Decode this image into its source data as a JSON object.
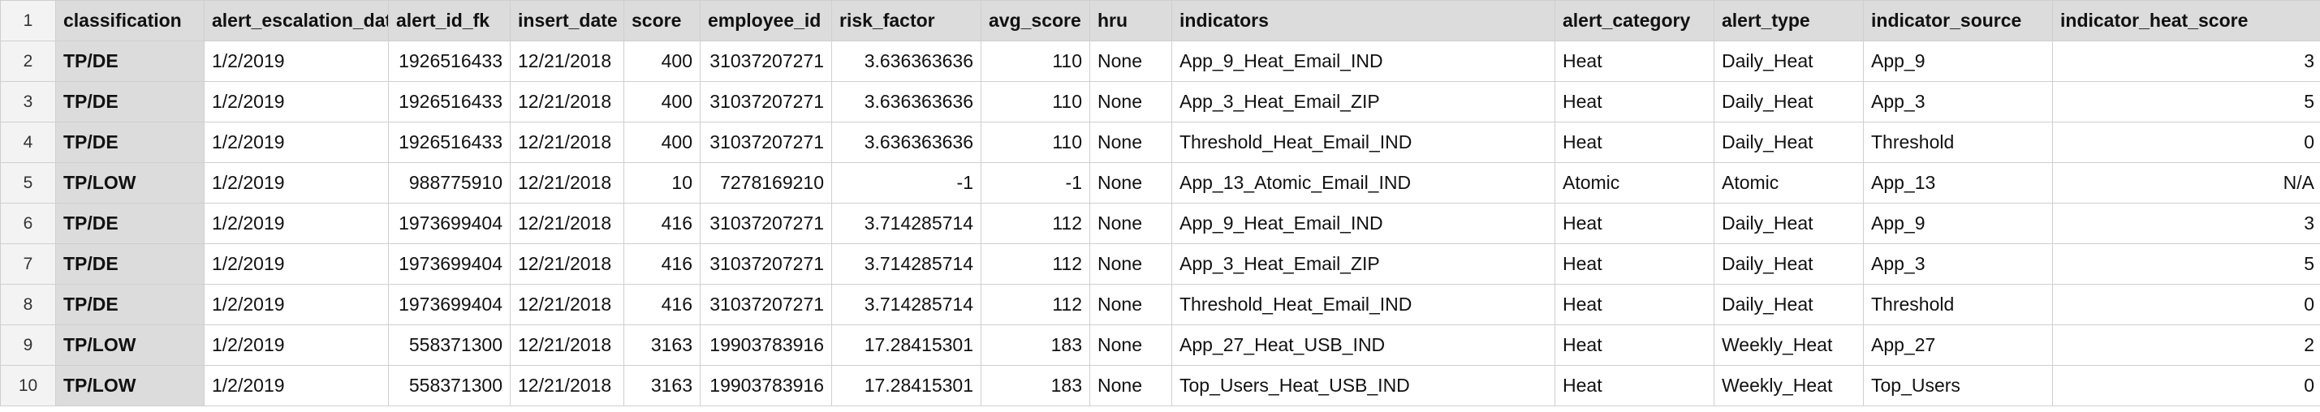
{
  "columns": [
    {
      "key": "classification",
      "label": "classification",
      "align": "left"
    },
    {
      "key": "alert_escalation_date",
      "label": "alert_escalation_date",
      "align": "left"
    },
    {
      "key": "alert_id_fk",
      "label": "alert_id_fk",
      "align": "right"
    },
    {
      "key": "insert_date",
      "label": "insert_date",
      "align": "left"
    },
    {
      "key": "score",
      "label": "score",
      "align": "right"
    },
    {
      "key": "employee_id",
      "label": "employee_id",
      "align": "right"
    },
    {
      "key": "risk_factor",
      "label": "risk_factor",
      "align": "right"
    },
    {
      "key": "avg_score",
      "label": "avg_score",
      "align": "right"
    },
    {
      "key": "hru",
      "label": "hru",
      "align": "left"
    },
    {
      "key": "indicators",
      "label": "indicators",
      "align": "left"
    },
    {
      "key": "alert_category",
      "label": "alert_category",
      "align": "left"
    },
    {
      "key": "alert_type",
      "label": "alert_type",
      "align": "left"
    },
    {
      "key": "indicator_source",
      "label": "indicator_source",
      "align": "left"
    },
    {
      "key": "indicator_heat_score",
      "label": "indicator_heat_score",
      "align": "right"
    }
  ],
  "header_row_number": "1",
  "rows": [
    {
      "row_number": "2",
      "cells": [
        "TP/DE",
        "1/2/2019",
        "1926516433",
        "12/21/2018",
        "400",
        "31037207271",
        "3.636363636",
        "110",
        "None",
        "App_9_Heat_Email_IND",
        "Heat",
        "Daily_Heat",
        "App_9",
        "3"
      ]
    },
    {
      "row_number": "3",
      "cells": [
        "TP/DE",
        "1/2/2019",
        "1926516433",
        "12/21/2018",
        "400",
        "31037207271",
        "3.636363636",
        "110",
        "None",
        "App_3_Heat_Email_ZIP",
        "Heat",
        "Daily_Heat",
        "App_3",
        "5"
      ]
    },
    {
      "row_number": "4",
      "cells": [
        "TP/DE",
        "1/2/2019",
        "1926516433",
        "12/21/2018",
        "400",
        "31037207271",
        "3.636363636",
        "110",
        "None",
        "Threshold_Heat_Email_IND",
        "Heat",
        "Daily_Heat",
        "Threshold",
        "0"
      ]
    },
    {
      "row_number": "5",
      "cells": [
        "TP/LOW",
        "1/2/2019",
        "988775910",
        "12/21/2018",
        "10",
        "7278169210",
        "-1",
        "-1",
        "None",
        "App_13_Atomic_Email_IND",
        "Atomic",
        "Atomic",
        "App_13",
        "N/A"
      ]
    },
    {
      "row_number": "6",
      "cells": [
        "TP/DE",
        "1/2/2019",
        "1973699404",
        "12/21/2018",
        "416",
        "31037207271",
        "3.714285714",
        "112",
        "None",
        "App_9_Heat_Email_IND",
        "Heat",
        "Daily_Heat",
        "App_9",
        "3"
      ]
    },
    {
      "row_number": "7",
      "cells": [
        "TP/DE",
        "1/2/2019",
        "1973699404",
        "12/21/2018",
        "416",
        "31037207271",
        "3.714285714",
        "112",
        "None",
        "App_3_Heat_Email_ZIP",
        "Heat",
        "Daily_Heat",
        "App_3",
        "5"
      ]
    },
    {
      "row_number": "8",
      "cells": [
        "TP/DE",
        "1/2/2019",
        "1973699404",
        "12/21/2018",
        "416",
        "31037207271",
        "3.714285714",
        "112",
        "None",
        "Threshold_Heat_Email_IND",
        "Heat",
        "Daily_Heat",
        "Threshold",
        "0"
      ]
    },
    {
      "row_number": "9",
      "cells": [
        "TP/LOW",
        "1/2/2019",
        "558371300",
        "12/21/2018",
        "3163",
        "19903783916",
        "17.28415301",
        "183",
        "None",
        "App_27_Heat_USB_IND",
        "Heat",
        "Weekly_Heat",
        "App_27",
        "2"
      ]
    },
    {
      "row_number": "10",
      "cells": [
        "TP/LOW",
        "1/2/2019",
        "558371300",
        "12/21/2018",
        "3163",
        "19903783916",
        "17.28415301",
        "183",
        "None",
        "Top_Users_Heat_USB_IND",
        "Heat",
        "Weekly_Heat",
        "Top_Users",
        "0"
      ]
    }
  ],
  "colors": {
    "header_background": "#dcdcdc",
    "row_number_background": "#f3f3f3",
    "grid_line": "#cfcfcf"
  }
}
